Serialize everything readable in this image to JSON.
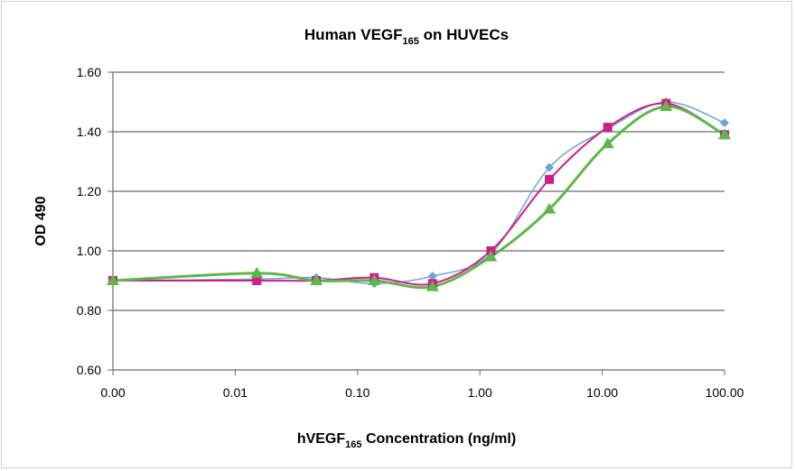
{
  "chart_data": {
    "type": "line",
    "title": {
      "main": "Human VEGF",
      "sub": "165",
      "rest": " on HUVECs"
    },
    "xlabel": {
      "main": "hVEGF",
      "sub": "165",
      "rest": " Concentration (ng/ml)"
    },
    "ylabel": "OD 490",
    "x_scale": "log",
    "x_ticks": [
      {
        "value": 0.001,
        "label": "0.00"
      },
      {
        "value": 0.01,
        "label": "0.01"
      },
      {
        "value": 0.1,
        "label": "0.10"
      },
      {
        "value": 1,
        "label": "1.00"
      },
      {
        "value": 10,
        "label": "10.00"
      },
      {
        "value": 100,
        "label": "100.00"
      }
    ],
    "xlim": [
      0.001,
      100
    ],
    "ylim": [
      0.6,
      1.6
    ],
    "y_ticks": [
      "0.60",
      "0.80",
      "1.00",
      "1.20",
      "1.40",
      "1.60"
    ],
    "grid": "horizontal",
    "x": [
      0,
      0.015,
      0.046,
      0.137,
      0.41,
      1.23,
      3.7,
      11.1,
      33.3,
      100
    ],
    "series": [
      {
        "color": "#6fa3d2",
        "marker": "diamond",
        "values": [
          0.9,
          0.905,
          0.91,
          0.89,
          0.915,
          0.99,
          1.28,
          1.41,
          1.5,
          1.43
        ]
      },
      {
        "color": "#cc1f8a",
        "marker": "square",
        "values": [
          0.9,
          0.9,
          0.9,
          0.91,
          0.89,
          1.0,
          1.24,
          1.415,
          1.495,
          1.39
        ]
      },
      {
        "color": "#5db848",
        "marker": "triangle",
        "values": [
          0.9,
          0.925,
          0.9,
          0.9,
          0.88,
          0.98,
          1.14,
          1.36,
          1.485,
          1.39
        ]
      }
    ]
  }
}
